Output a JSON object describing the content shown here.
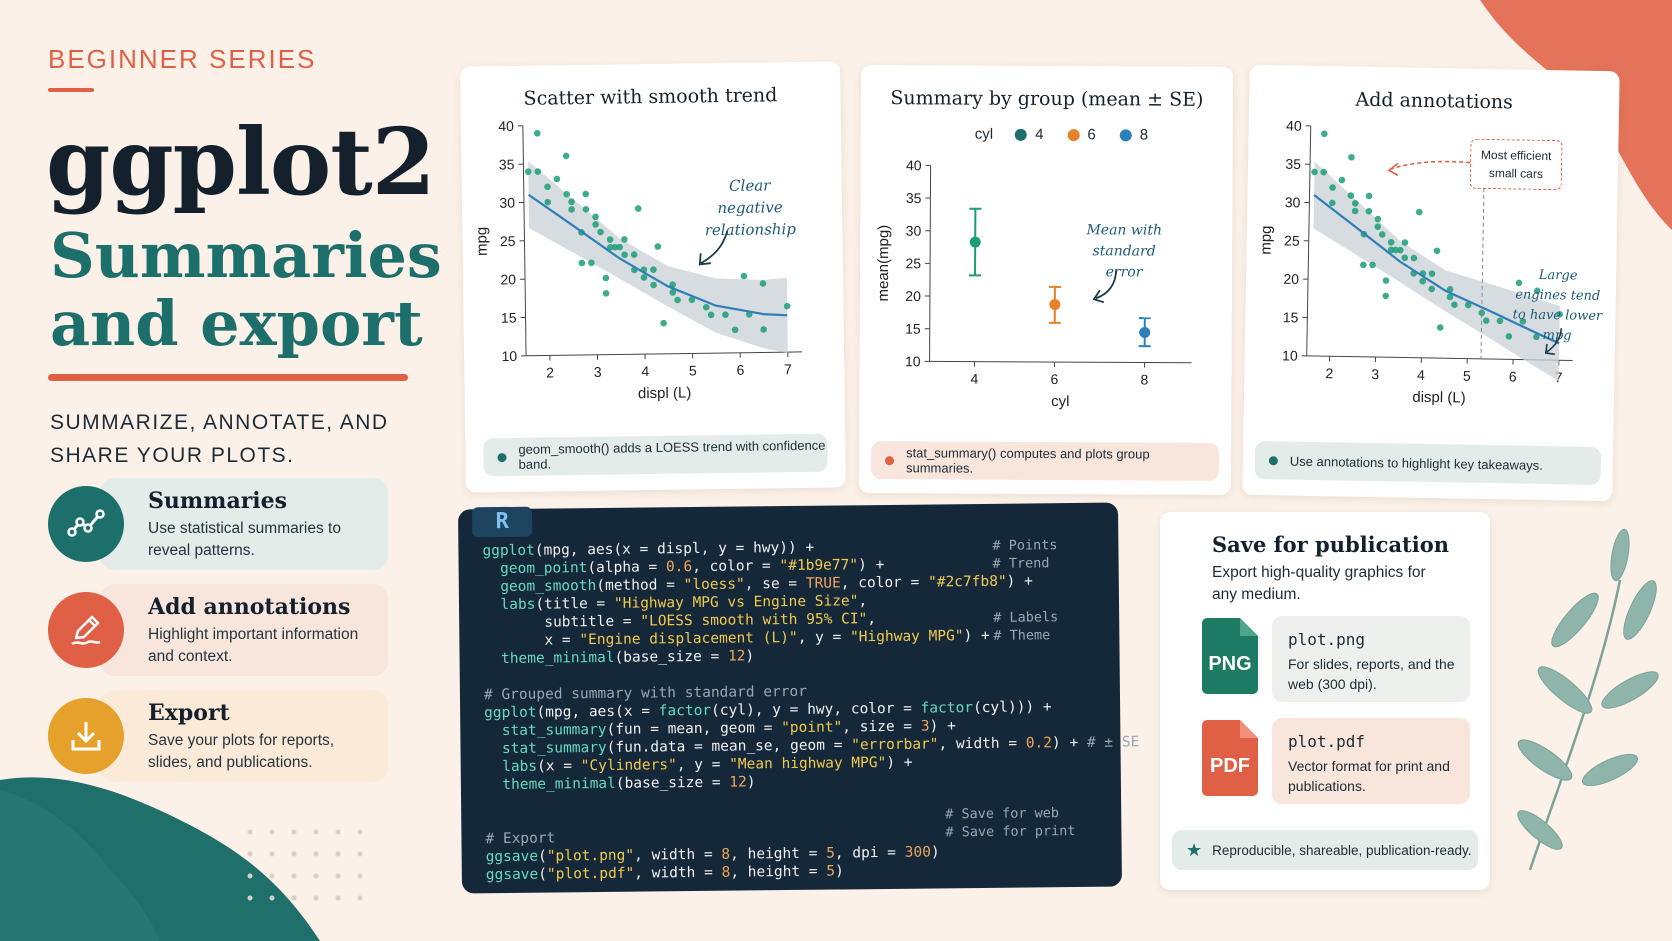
{
  "header": {
    "series": "BEGINNER SERIES",
    "title": "ggplot2",
    "subtitle": "Summaries and export",
    "tagline": "SUMMARIZE, ANNOTATE, AND SHARE YOUR PLOTS."
  },
  "features": [
    {
      "title": "Summaries",
      "desc": "Use statistical summaries to reveal patterns.",
      "icon": "line-chart-icon",
      "color": "#1d6f6b"
    },
    {
      "title": "Add annotations",
      "desc": "Highlight important information and context.",
      "icon": "pencil-icon",
      "color": "#e06046"
    },
    {
      "title": "Export",
      "desc": "Save your plots for reports, slides, and publications.",
      "icon": "download-icon",
      "color": "#e6a12c"
    }
  ],
  "panel1": {
    "title": "Scatter with smooth trend",
    "xlabel": "displ (L)",
    "ylabel": "mpg",
    "annotation": "Clear negative relationship",
    "caption": "geom_smooth() adds a LOESS trend with confidence band.",
    "x_ticks": [
      "2",
      "3",
      "4",
      "5",
      "6",
      "7"
    ],
    "y_ticks": [
      "10",
      "15",
      "20",
      "25",
      "30",
      "35",
      "40"
    ]
  },
  "panel2": {
    "title": "Summary by group (mean ± SE)",
    "legend_title": "cyl",
    "legend": [
      "4",
      "6",
      "8"
    ],
    "xlabel": "cyl",
    "ylabel": "mean(mpg)",
    "annotation": "Mean with standard error",
    "caption": "stat_summary() computes and plots group summaries.",
    "x_ticks": [
      "4",
      "6",
      "8"
    ],
    "y_ticks": [
      "10",
      "15",
      "20",
      "25",
      "30",
      "35",
      "40"
    ]
  },
  "panel3": {
    "title": "Add annotations",
    "xlabel": "displ (L)",
    "ylabel": "mpg",
    "box_annotation": "Most efficient small cars",
    "annotation": "Large engines tend to have lower mpg",
    "caption": "Use annotations to highlight key takeaways.",
    "x_ticks": [
      "2",
      "3",
      "4",
      "5",
      "6",
      "7"
    ],
    "y_ticks": [
      "10",
      "15",
      "20",
      "25",
      "30",
      "35",
      "40"
    ]
  },
  "colors": {
    "teal": "#1b9e77",
    "blue": "#2c7fb8",
    "orange": "#e6822c",
    "coral": "#e06046"
  },
  "chart_data": [
    {
      "type": "scatter",
      "title": "Scatter with smooth trend",
      "xlabel": "displ (L)",
      "ylabel": "mpg",
      "xlim": [
        1.5,
        7.3
      ],
      "ylim": [
        10,
        40
      ],
      "points": [
        [
          1.8,
          39
        ],
        [
          1.6,
          34
        ],
        [
          1.8,
          34
        ],
        [
          2.0,
          32
        ],
        [
          2.4,
          36
        ],
        [
          2.0,
          30
        ],
        [
          2.2,
          33
        ],
        [
          2.4,
          31
        ],
        [
          2.5,
          29
        ],
        [
          2.5,
          30
        ],
        [
          2.8,
          31
        ],
        [
          2.8,
          29
        ],
        [
          2.7,
          26
        ],
        [
          3.0,
          28
        ],
        [
          3.0,
          27
        ],
        [
          3.1,
          26
        ],
        [
          3.3,
          25
        ],
        [
          3.3,
          24
        ],
        [
          3.5,
          24
        ],
        [
          3.6,
          25
        ],
        [
          3.6,
          23
        ],
        [
          3.8,
          23
        ],
        [
          3.8,
          21
        ],
        [
          4.0,
          21
        ],
        [
          4.0,
          20
        ],
        [
          4.2,
          19
        ],
        [
          4.2,
          21
        ],
        [
          2.7,
          22
        ],
        [
          2.9,
          22
        ],
        [
          3.2,
          20
        ],
        [
          3.2,
          18
        ],
        [
          3.4,
          24
        ],
        [
          4.3,
          24
        ],
        [
          4.6,
          19
        ],
        [
          4.6,
          18
        ],
        [
          4.7,
          17
        ],
        [
          4.4,
          14
        ],
        [
          5.0,
          17
        ],
        [
          5.3,
          16
        ],
        [
          5.4,
          15
        ],
        [
          5.7,
          15
        ],
        [
          5.9,
          13
        ],
        [
          6.1,
          20
        ],
        [
          6.2,
          15
        ],
        [
          6.5,
          13
        ],
        [
          6.5,
          19
        ],
        [
          7.0,
          16
        ],
        [
          3.9,
          29
        ]
      ],
      "smooth": {
        "x": [
          1.6,
          2.5,
          3.5,
          4.5,
          5.5,
          6.5,
          7.0
        ],
        "y": [
          31,
          27,
          22.5,
          18.8,
          16.2,
          15,
          14.8
        ]
      }
    },
    {
      "type": "errorbar",
      "title": "Summary by group (mean ± SE)",
      "xlabel": "cyl",
      "ylabel": "mean(mpg)",
      "ylim": [
        10,
        40
      ],
      "categories": [
        "4",
        "6",
        "8"
      ],
      "series": [
        {
          "name": "4",
          "mean": 28.3,
          "lower": 23.2,
          "upper": 33.4
        },
        {
          "name": "6",
          "mean": 18.8,
          "lower": 16.0,
          "upper": 21.5
        },
        {
          "name": "8",
          "mean": 14.6,
          "lower": 12.5,
          "upper": 16.8
        }
      ]
    },
    {
      "type": "scatter",
      "title": "Add annotations",
      "xlabel": "displ (L)",
      "ylabel": "mpg",
      "xlim": [
        1.5,
        7.3
      ],
      "ylim": [
        10,
        40
      ],
      "points": [
        [
          1.8,
          39
        ],
        [
          1.6,
          34
        ],
        [
          1.8,
          34
        ],
        [
          2.0,
          32
        ],
        [
          2.4,
          36
        ],
        [
          2.0,
          30
        ],
        [
          2.2,
          33
        ],
        [
          2.4,
          31
        ],
        [
          2.5,
          29
        ],
        [
          2.5,
          30
        ],
        [
          2.8,
          31
        ],
        [
          2.8,
          29
        ],
        [
          2.7,
          26
        ],
        [
          3.0,
          28
        ],
        [
          3.0,
          27
        ],
        [
          3.1,
          26
        ],
        [
          3.3,
          25
        ],
        [
          3.3,
          24
        ],
        [
          3.5,
          24
        ],
        [
          3.6,
          25
        ],
        [
          3.6,
          23
        ],
        [
          3.8,
          23
        ],
        [
          3.8,
          21
        ],
        [
          4.0,
          21
        ],
        [
          4.0,
          20
        ],
        [
          4.2,
          19
        ],
        [
          4.2,
          21
        ],
        [
          2.7,
          22
        ],
        [
          2.9,
          22
        ],
        [
          3.2,
          20
        ],
        [
          3.2,
          18
        ],
        [
          3.4,
          24
        ],
        [
          4.3,
          24
        ],
        [
          4.6,
          19
        ],
        [
          4.6,
          18
        ],
        [
          4.7,
          17
        ],
        [
          4.4,
          14
        ],
        [
          5.0,
          17
        ],
        [
          5.3,
          16
        ],
        [
          5.4,
          15
        ],
        [
          5.7,
          15
        ],
        [
          5.9,
          13
        ],
        [
          6.1,
          20
        ],
        [
          6.2,
          15
        ],
        [
          6.5,
          13
        ],
        [
          6.5,
          19
        ],
        [
          7.0,
          16
        ],
        [
          3.9,
          29
        ]
      ],
      "smooth": {
        "x": [
          1.6,
          2.5,
          3.5,
          4.5,
          5.5,
          6.5,
          7.0
        ],
        "y": [
          31,
          27,
          22.5,
          18.8,
          16.2,
          13.5,
          12.2
        ]
      },
      "vline": 5.3
    }
  ],
  "code": {
    "badge": "R",
    "lines": [
      "ggplot(mpg, aes(x = displ, y = hwy)) +",
      "  geom_point(alpha = 0.6, color = \"#1b9e77\") +",
      "  geom_smooth(method = \"loess\", se = TRUE, color = \"#2c7fb8\") +",
      "  labs(title = \"Highway MPG vs Engine Size\",",
      "       subtitle = \"LOESS smooth with 95% CI\",",
      "       x = \"Engine displacement (L)\", y = \"Highway MPG\") +",
      "  theme_minimal(base_size = 12)",
      "",
      "# Grouped summary with standard error",
      "ggplot(mpg, aes(x = factor(cyl), y = hwy, color = factor(cyl))) +",
      "  stat_summary(fun = mean, geom = \"point\", size = 3) +",
      "  stat_summary(fun.data = mean_se, geom = \"errorbar\", width = 0.2) + # ± SE",
      "  labs(x = \"Cylinders\", y = \"Mean highway MPG\") +",
      "  theme_minimal(base_size = 12)",
      "",
      "",
      "# Export",
      "ggsave(\"plot.png\", width = 8, height = 5, dpi = 300)",
      "ggsave(\"plot.pdf\", width = 8, height = 5)"
    ],
    "comments": [
      "# Points",
      "# Trend",
      "# Labels",
      "# Theme",
      "# Save for web",
      "# Save for print"
    ]
  },
  "publication": {
    "title": "Save for publication",
    "desc": "Export high-quality graphics for any medium.",
    "files": [
      {
        "badge": "PNG",
        "name": "plot.png",
        "desc": "For slides, reports, and the web (300 dpi).",
        "color": "#1d7a63"
      },
      {
        "badge": "PDF",
        "name": "plot.pdf",
        "desc": "Vector format for print and publications.",
        "color": "#e06046"
      }
    ],
    "footer": "Reproducible, shareable, publication-ready."
  }
}
